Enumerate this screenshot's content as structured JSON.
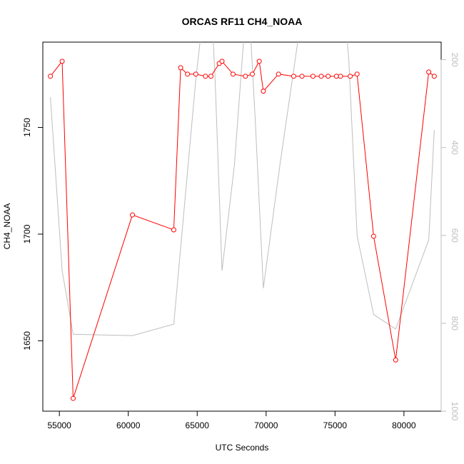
{
  "chart_data": {
    "type": "line",
    "title": "ORCAS RF11 CH4_NOAA",
    "xlabel": "UTC Seconds",
    "ylabel": "CH4_NOAA",
    "xlim": [
      53800,
      82700
    ],
    "ylim": [
      1617,
      1790
    ],
    "y2lim": [
      1000,
      160
    ],
    "y2_reversed": true,
    "grid": false,
    "x_ticks": [
      55000,
      60000,
      65000,
      70000,
      75000,
      80000
    ],
    "y_ticks": [
      1650,
      1700,
      1750
    ],
    "y2_ticks": [
      200,
      400,
      600,
      800,
      1000
    ],
    "colors": {
      "primary": "#ff0000",
      "secondary": "#bebebe",
      "axis": "#000000"
    },
    "series": [
      {
        "axis": "left",
        "style": "line-with-open-circles",
        "color": "#ff0000",
        "points": [
          [
            54350,
            1774
          ],
          [
            55200,
            1781
          ],
          [
            56000,
            1623
          ],
          [
            60300,
            1709
          ],
          [
            63300,
            1702
          ],
          [
            63800,
            1778
          ],
          [
            64300,
            1775
          ],
          [
            64900,
            1775
          ],
          [
            65600,
            1774
          ],
          [
            66000,
            1774
          ],
          [
            66600,
            1780
          ],
          [
            66800,
            1781
          ],
          [
            67600,
            1775
          ],
          [
            68500,
            1774
          ],
          [
            69000,
            1775
          ],
          [
            69500,
            1781
          ],
          [
            69800,
            1767
          ],
          [
            70900,
            1775
          ],
          [
            72000,
            1774
          ],
          [
            72600,
            1774
          ],
          [
            73400,
            1774
          ],
          [
            74000,
            1774
          ],
          [
            74500,
            1774
          ],
          [
            75100,
            1774
          ],
          [
            75400,
            1774
          ],
          [
            76100,
            1774
          ],
          [
            76600,
            1775
          ],
          [
            77800,
            1699
          ],
          [
            79400,
            1641
          ],
          [
            81800,
            1776
          ],
          [
            82200,
            1774
          ]
        ]
      },
      {
        "axis": "right",
        "style": "line",
        "color": "#bebebe",
        "points": [
          [
            54350,
            285
          ],
          [
            55200,
            680
          ],
          [
            56000,
            825
          ],
          [
            60300,
            828
          ],
          [
            63300,
            802
          ],
          [
            64900,
            245
          ],
          [
            65600,
            50
          ],
          [
            66000,
            50
          ],
          [
            66300,
            245
          ],
          [
            66800,
            680
          ],
          [
            67700,
            440
          ],
          [
            68500,
            100
          ],
          [
            68800,
            100
          ],
          [
            69200,
            330
          ],
          [
            69800,
            720
          ],
          [
            71000,
            440
          ],
          [
            72800,
            50
          ],
          [
            73400,
            50
          ],
          [
            73600,
            150
          ],
          [
            73800,
            50
          ],
          [
            74500,
            50
          ],
          [
            74700,
            150
          ],
          [
            74900,
            50
          ],
          [
            75600,
            50
          ],
          [
            76000,
            200
          ],
          [
            76600,
            600
          ],
          [
            77800,
            780
          ],
          [
            79400,
            813
          ],
          [
            81800,
            610
          ],
          [
            82200,
            360
          ]
        ]
      }
    ]
  }
}
